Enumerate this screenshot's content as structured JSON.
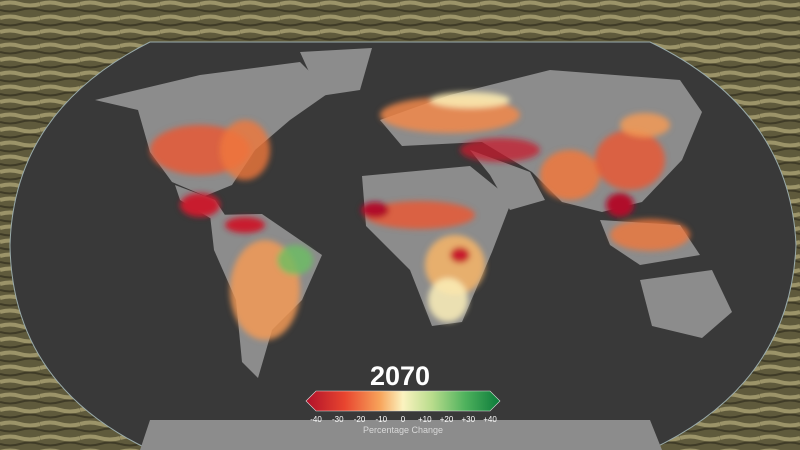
{
  "year": "2070",
  "legend": {
    "ticks": [
      "-40",
      "-30",
      "-20",
      "-10",
      "0",
      "+10",
      "+20",
      "+30",
      "+40"
    ],
    "title": "Percentage Change"
  }
}
